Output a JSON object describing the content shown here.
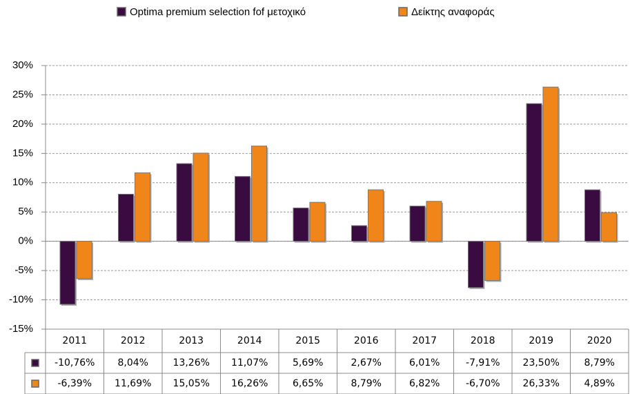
{
  "chart_data": {
    "type": "bar",
    "categories": [
      "2011",
      "2012",
      "2013",
      "2014",
      "2015",
      "2016",
      "2017",
      "2018",
      "2019",
      "2020"
    ],
    "series": [
      {
        "name": "Optima premium selection fof μετοχικό",
        "color": "#3a0b40",
        "values": [
          -10.76,
          8.04,
          13.26,
          11.07,
          5.69,
          2.67,
          6.01,
          -7.91,
          23.5,
          8.79
        ],
        "value_labels": [
          "-10,76%",
          "8,04%",
          "13,26%",
          "11,07%",
          "5,69%",
          "2,67%",
          "6,01%",
          "-7,91%",
          "23,50%",
          "8,79%"
        ]
      },
      {
        "name": "Δείκτης αναφοράς",
        "color": "#f0861a",
        "values": [
          -6.39,
          11.69,
          15.05,
          16.26,
          6.65,
          8.79,
          6.82,
          -6.7,
          26.33,
          4.89
        ],
        "value_labels": [
          "-6,39%",
          "11,69%",
          "15,05%",
          "16,26%",
          "6,65%",
          "8,79%",
          "6,82%",
          "-6,70%",
          "26,33%",
          "4,89%"
        ]
      }
    ],
    "ylim": [
      -15,
      30
    ],
    "yticks": [
      {
        "value": -15,
        "label": "-15%"
      },
      {
        "value": -10,
        "label": "-10%"
      },
      {
        "value": -5,
        "label": "-5%"
      },
      {
        "value": 0,
        "label": "0%"
      },
      {
        "value": 5,
        "label": "5%"
      },
      {
        "value": 10,
        "label": "10%"
      },
      {
        "value": 15,
        "label": "15%"
      },
      {
        "value": 20,
        "label": "20%"
      },
      {
        "value": 25,
        "label": "25%"
      },
      {
        "value": 30,
        "label": "30%"
      }
    ],
    "grid": true,
    "legend": "top"
  }
}
